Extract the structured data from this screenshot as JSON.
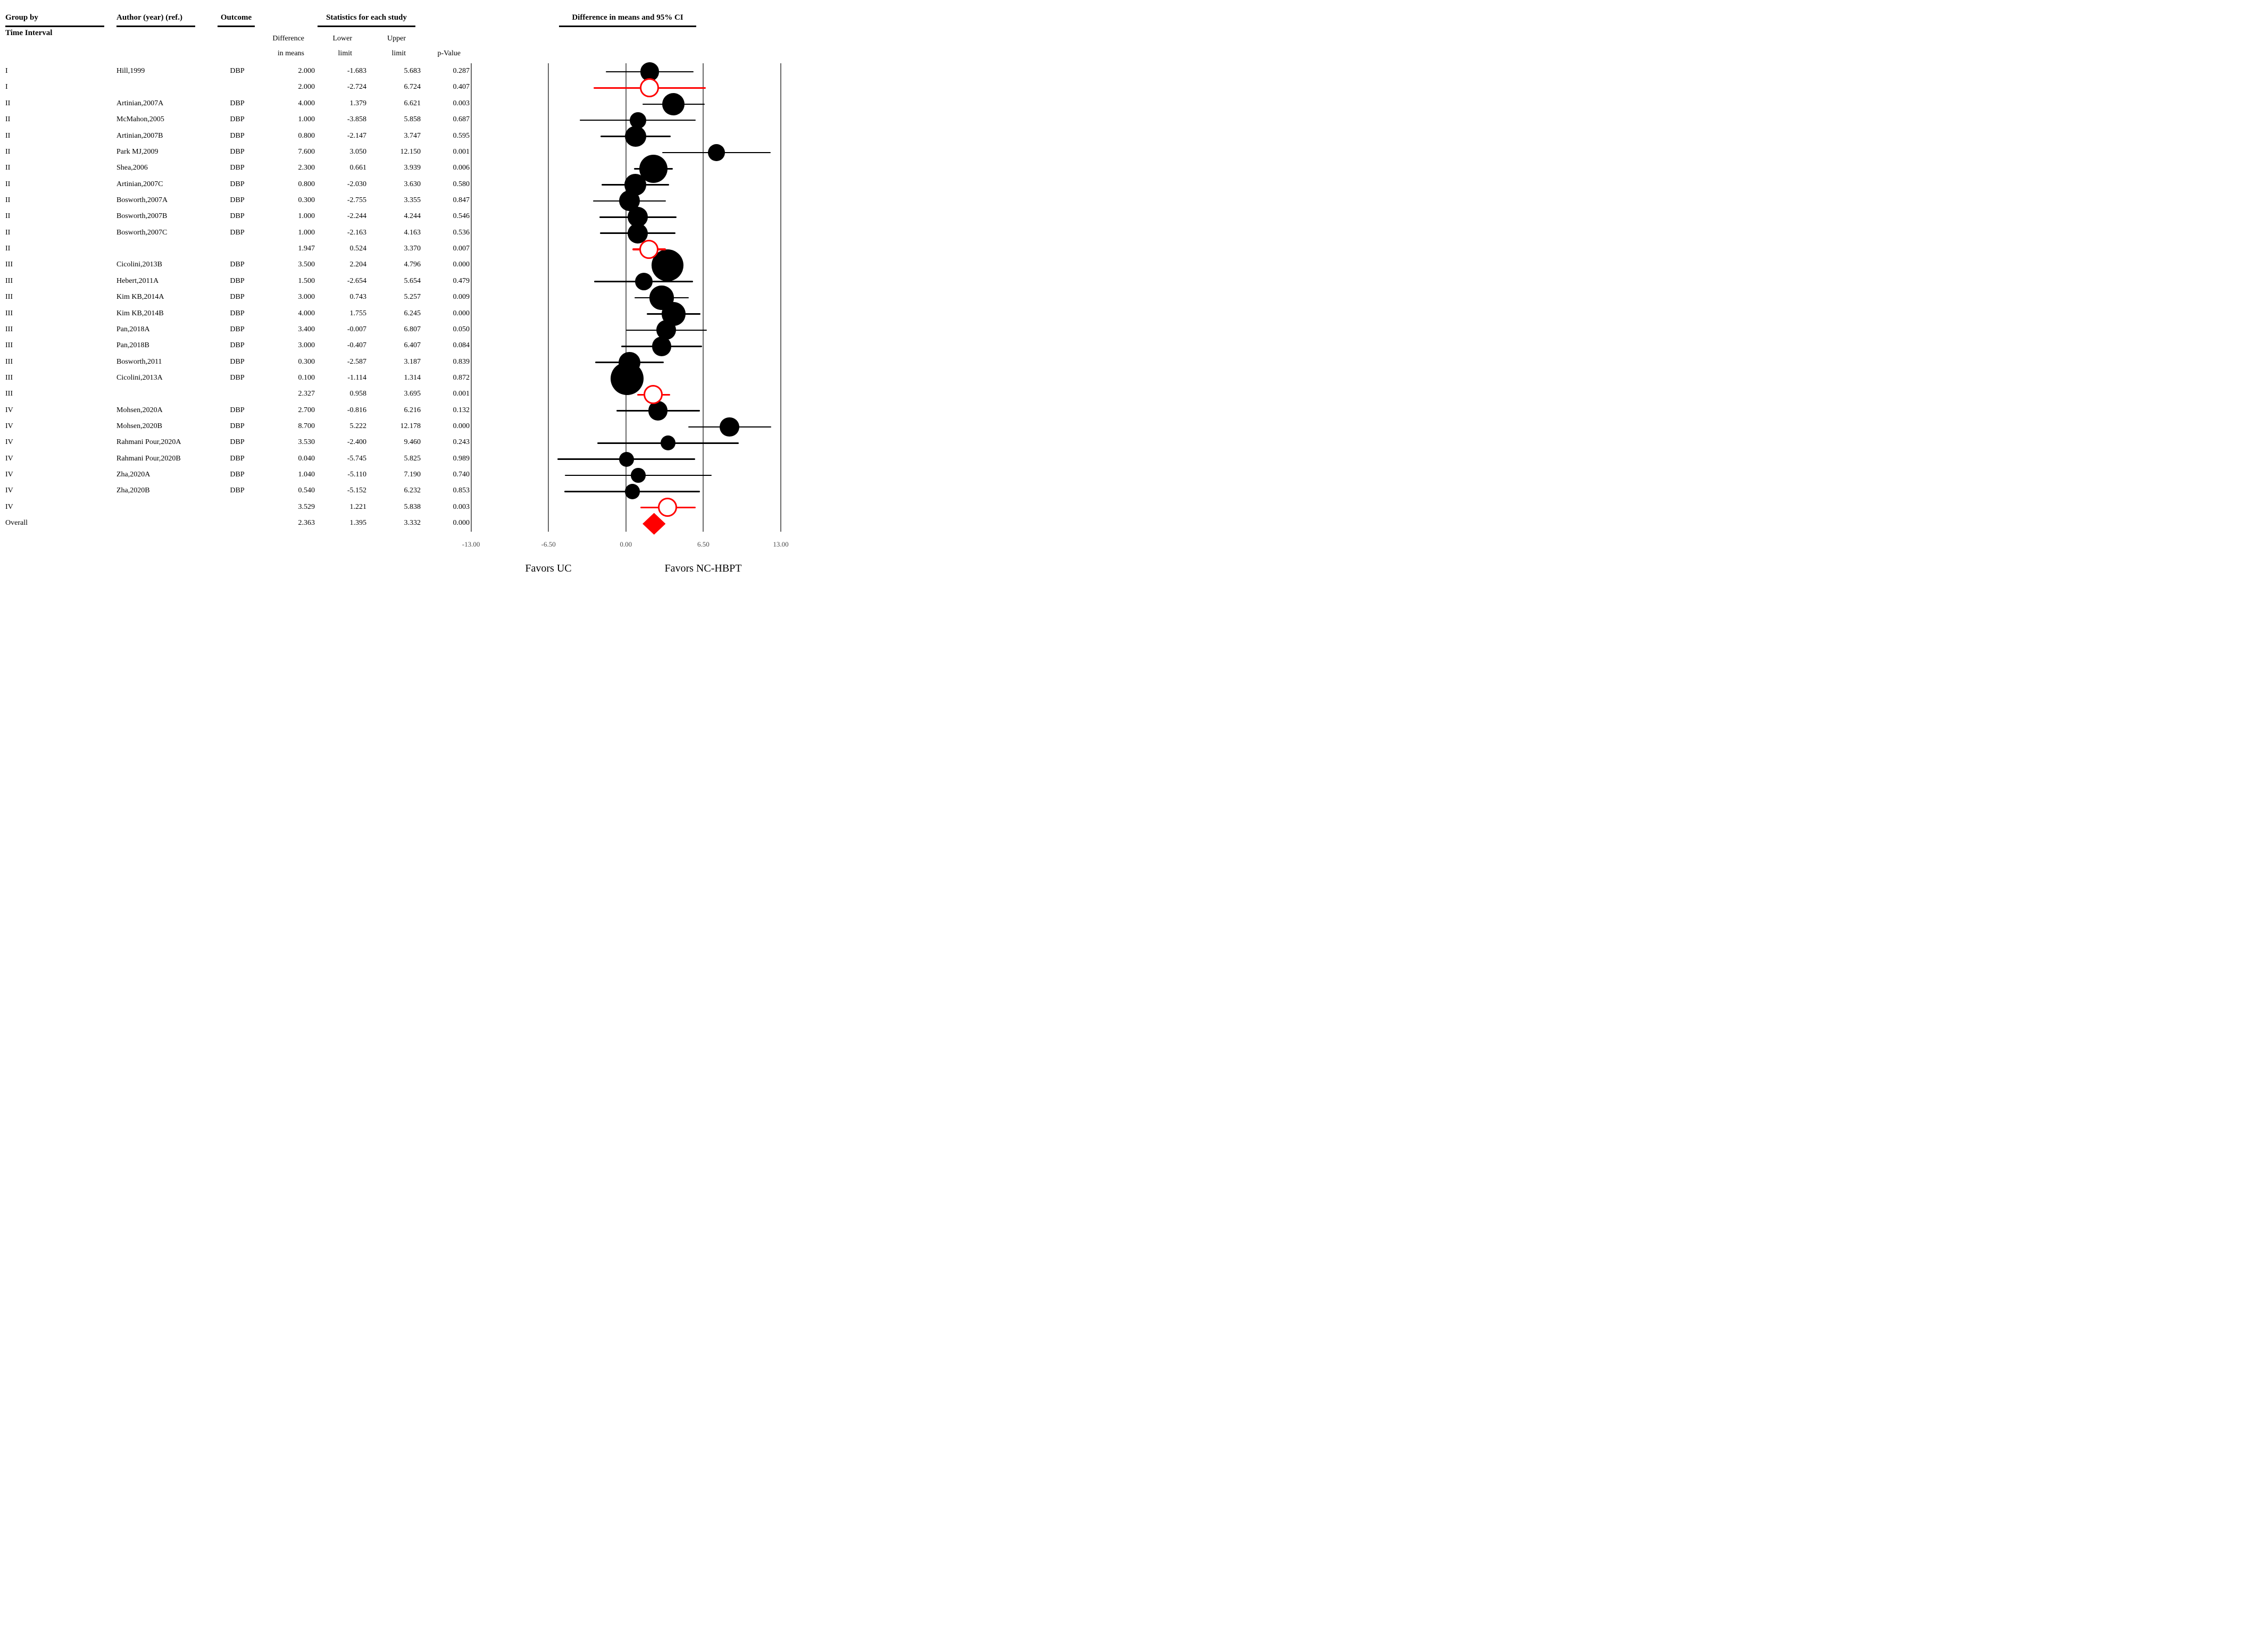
{
  "header": {
    "group_by_line1": "Group by",
    "group_by_line2": "Time Interval",
    "author": "Author (year) (ref.)",
    "outcome": "Outcome",
    "statistics": "Statistics for each study",
    "ci_title": "Difference in means and 95% CI",
    "sub_difference": "Difference",
    "sub_in_means": "in means",
    "sub_lower": "Lower",
    "sub_upper": "Upper",
    "sub_limit": "limit",
    "sub_p_value": "p-Value"
  },
  "axis": {
    "ticks": [
      {
        "label": "-13.00",
        "value": -13
      },
      {
        "label": "-6.50",
        "value": -6.5
      },
      {
        "label": "0.00",
        "value": 0
      },
      {
        "label": "6.50",
        "value": 6.5
      },
      {
        "label": "13.00",
        "value": 13
      }
    ],
    "favors_left": "Favors UC",
    "favors_right": "Favors NC-HBPT"
  },
  "colors": {
    "text": "#000000",
    "grid": "#686868",
    "tick_label": "#4a4a4a",
    "accent_red": "#ff0000"
  },
  "chart_data": {
    "type": "forest",
    "title": "Difference in means and 95% CI",
    "xlabel_left": "Favors UC",
    "xlabel_right": "Favors NC-HBPT",
    "xlim": [
      -13,
      13
    ],
    "x_ticks": [
      -13,
      -6.5,
      0,
      6.5,
      13
    ],
    "grid": "vertical-reference-lines",
    "rows": [
      {
        "group": "I",
        "author": "Hill,1999",
        "outcome": "DBP",
        "diff": "2.000",
        "lower": "-1.683",
        "upper": "5.683",
        "p": "0.287",
        "kind": "study"
      },
      {
        "group": "I",
        "author": "",
        "outcome": "",
        "diff": "2.000",
        "lower": "-2.724",
        "upper": "6.724",
        "p": "0.407",
        "kind": "subtotal"
      },
      {
        "group": "II",
        "author": "Artinian,2007A",
        "outcome": "DBP",
        "diff": "4.000",
        "lower": "1.379",
        "upper": "6.621",
        "p": "0.003",
        "kind": "study"
      },
      {
        "group": "II",
        "author": "McMahon,2005",
        "outcome": "DBP",
        "diff": "1.000",
        "lower": "-3.858",
        "upper": "5.858",
        "p": "0.687",
        "kind": "study"
      },
      {
        "group": "II",
        "author": "Artinian,2007B",
        "outcome": "DBP",
        "diff": "0.800",
        "lower": "-2.147",
        "upper": "3.747",
        "p": "0.595",
        "kind": "study"
      },
      {
        "group": "II",
        "author": "Park MJ,2009",
        "outcome": "DBP",
        "diff": "7.600",
        "lower": "3.050",
        "upper": "12.150",
        "p": "0.001",
        "kind": "study"
      },
      {
        "group": "II",
        "author": "Shea,2006",
        "outcome": "DBP",
        "diff": "2.300",
        "lower": "0.661",
        "upper": "3.939",
        "p": "0.006",
        "kind": "study"
      },
      {
        "group": "II",
        "author": "Artinian,2007C",
        "outcome": "DBP",
        "diff": "0.800",
        "lower": "-2.030",
        "upper": "3.630",
        "p": "0.580",
        "kind": "study"
      },
      {
        "group": "II",
        "author": "Bosworth,2007A",
        "outcome": "DBP",
        "diff": "0.300",
        "lower": "-2.755",
        "upper": "3.355",
        "p": "0.847",
        "kind": "study"
      },
      {
        "group": "II",
        "author": "Bosworth,2007B",
        "outcome": "DBP",
        "diff": "1.000",
        "lower": "-2.244",
        "upper": "4.244",
        "p": "0.546",
        "kind": "study"
      },
      {
        "group": "II",
        "author": "Bosworth,2007C",
        "outcome": "DBP",
        "diff": "1.000",
        "lower": "-2.163",
        "upper": "4.163",
        "p": "0.536",
        "kind": "study"
      },
      {
        "group": "II",
        "author": "",
        "outcome": "",
        "diff": "1.947",
        "lower": "0.524",
        "upper": "3.370",
        "p": "0.007",
        "kind": "subtotal"
      },
      {
        "group": "III",
        "author": "Cicolini,2013B",
        "outcome": "DBP",
        "diff": "3.500",
        "lower": "2.204",
        "upper": "4.796",
        "p": "0.000",
        "kind": "study"
      },
      {
        "group": "III",
        "author": "Hebert,2011A",
        "outcome": "DBP",
        "diff": "1.500",
        "lower": "-2.654",
        "upper": "5.654",
        "p": "0.479",
        "kind": "study"
      },
      {
        "group": "III",
        "author": "Kim KB,2014A",
        "outcome": "DBP",
        "diff": "3.000",
        "lower": "0.743",
        "upper": "5.257",
        "p": "0.009",
        "kind": "study"
      },
      {
        "group": "III",
        "author": "Kim KB,2014B",
        "outcome": "DBP",
        "diff": "4.000",
        "lower": "1.755",
        "upper": "6.245",
        "p": "0.000",
        "kind": "study"
      },
      {
        "group": "III",
        "author": "Pan,2018A",
        "outcome": "DBP",
        "diff": "3.400",
        "lower": "-0.007",
        "upper": "6.807",
        "p": "0.050",
        "kind": "study"
      },
      {
        "group": "III",
        "author": "Pan,2018B",
        "outcome": "DBP",
        "diff": "3.000",
        "lower": "-0.407",
        "upper": "6.407",
        "p": "0.084",
        "kind": "study"
      },
      {
        "group": "III",
        "author": "Bosworth,2011",
        "outcome": "DBP",
        "diff": "0.300",
        "lower": "-2.587",
        "upper": "3.187",
        "p": "0.839",
        "kind": "study"
      },
      {
        "group": "III",
        "author": "Cicolini,2013A",
        "outcome": "DBP",
        "diff": "0.100",
        "lower": "-1.114",
        "upper": "1.314",
        "p": "0.872",
        "kind": "study"
      },
      {
        "group": "III",
        "author": "",
        "outcome": "",
        "diff": "2.327",
        "lower": "0.958",
        "upper": "3.695",
        "p": "0.001",
        "kind": "subtotal"
      },
      {
        "group": "IV",
        "author": "Mohsen,2020A",
        "outcome": "DBP",
        "diff": "2.700",
        "lower": "-0.816",
        "upper": "6.216",
        "p": "0.132",
        "kind": "study"
      },
      {
        "group": "IV",
        "author": "Mohsen,2020B",
        "outcome": "DBP",
        "diff": "8.700",
        "lower": "5.222",
        "upper": "12.178",
        "p": "0.000",
        "kind": "study"
      },
      {
        "group": "IV",
        "author": "Rahmani Pour,2020A",
        "outcome": "DBP",
        "diff": "3.530",
        "lower": "-2.400",
        "upper": "9.460",
        "p": "0.243",
        "kind": "study"
      },
      {
        "group": "IV",
        "author": "Rahmani Pour,2020B",
        "outcome": "DBP",
        "diff": "0.040",
        "lower": "-5.745",
        "upper": "5.825",
        "p": "0.989",
        "kind": "study"
      },
      {
        "group": "IV",
        "author": "Zha,2020A",
        "outcome": "DBP",
        "diff": "1.040",
        "lower": "-5.110",
        "upper": "7.190",
        "p": "0.740",
        "kind": "study"
      },
      {
        "group": "IV",
        "author": "Zha,2020B",
        "outcome": "DBP",
        "diff": "0.540",
        "lower": "-5.152",
        "upper": "6.232",
        "p": "0.853",
        "kind": "study"
      },
      {
        "group": "IV",
        "author": "",
        "outcome": "",
        "diff": "3.529",
        "lower": "1.221",
        "upper": "5.838",
        "p": "0.003",
        "kind": "subtotal"
      },
      {
        "group": "Overall",
        "author": "",
        "outcome": "",
        "diff": "2.363",
        "lower": "1.395",
        "upper": "3.332",
        "p": "0.000",
        "kind": "overall"
      }
    ]
  }
}
